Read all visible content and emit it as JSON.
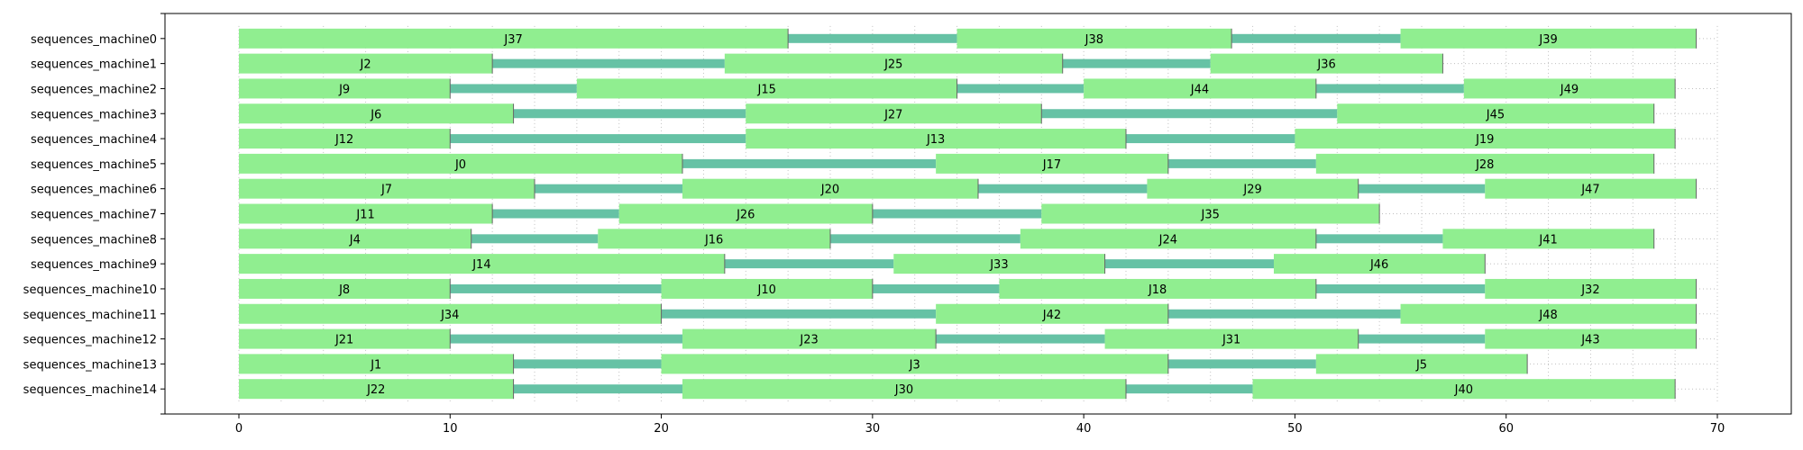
{
  "colors": {
    "job": "#90ee90",
    "idle": "#66c2a5",
    "grid": "#b0b0b0",
    "axis": "#000000",
    "job_edge": "#666666"
  },
  "chart_data": {
    "type": "gantt",
    "title": "",
    "xlabel": "",
    "ylabel": "",
    "xlim": [
      -3.5,
      73.5
    ],
    "ylim": [
      -1,
      15
    ],
    "x_ticks": [
      0,
      10,
      20,
      30,
      40,
      50,
      60,
      70
    ],
    "minor_x_step": 2,
    "grid": true,
    "rows": [
      {
        "name": "sequences_machine0",
        "jobs": [
          {
            "label": "J37",
            "start": 0,
            "end": 26
          },
          {
            "label": "J38",
            "start": 34,
            "end": 47
          },
          {
            "label": "J39",
            "start": 55,
            "end": 69
          }
        ]
      },
      {
        "name": "sequences_machine1",
        "jobs": [
          {
            "label": "J2",
            "start": 0,
            "end": 12
          },
          {
            "label": "J25",
            "start": 23,
            "end": 39
          },
          {
            "label": "J36",
            "start": 46,
            "end": 57
          }
        ]
      },
      {
        "name": "sequences_machine2",
        "jobs": [
          {
            "label": "J9",
            "start": 0,
            "end": 10
          },
          {
            "label": "J15",
            "start": 16,
            "end": 34
          },
          {
            "label": "J44",
            "start": 40,
            "end": 51
          },
          {
            "label": "J49",
            "start": 58,
            "end": 68
          }
        ]
      },
      {
        "name": "sequences_machine3",
        "jobs": [
          {
            "label": "J6",
            "start": 0,
            "end": 13
          },
          {
            "label": "J27",
            "start": 24,
            "end": 38
          },
          {
            "label": "J45",
            "start": 52,
            "end": 67
          }
        ]
      },
      {
        "name": "sequences_machine4",
        "jobs": [
          {
            "label": "J12",
            "start": 0,
            "end": 10
          },
          {
            "label": "J13",
            "start": 24,
            "end": 42
          },
          {
            "label": "J19",
            "start": 50,
            "end": 68
          }
        ]
      },
      {
        "name": "sequences_machine5",
        "jobs": [
          {
            "label": "J0",
            "start": 0,
            "end": 21
          },
          {
            "label": "J17",
            "start": 33,
            "end": 44
          },
          {
            "label": "J28",
            "start": 51,
            "end": 67
          }
        ]
      },
      {
        "name": "sequences_machine6",
        "jobs": [
          {
            "label": "J7",
            "start": 0,
            "end": 14
          },
          {
            "label": "J20",
            "start": 21,
            "end": 35
          },
          {
            "label": "J29",
            "start": 43,
            "end": 53
          },
          {
            "label": "J47",
            "start": 59,
            "end": 69
          }
        ]
      },
      {
        "name": "sequences_machine7",
        "jobs": [
          {
            "label": "J11",
            "start": 0,
            "end": 12
          },
          {
            "label": "J26",
            "start": 18,
            "end": 30
          },
          {
            "label": "J35",
            "start": 38,
            "end": 54
          }
        ]
      },
      {
        "name": "sequences_machine8",
        "jobs": [
          {
            "label": "J4",
            "start": 0,
            "end": 11
          },
          {
            "label": "J16",
            "start": 17,
            "end": 28
          },
          {
            "label": "J24",
            "start": 37,
            "end": 51
          },
          {
            "label": "J41",
            "start": 57,
            "end": 67
          }
        ]
      },
      {
        "name": "sequences_machine9",
        "jobs": [
          {
            "label": "J14",
            "start": 0,
            "end": 23
          },
          {
            "label": "J33",
            "start": 31,
            "end": 41
          },
          {
            "label": "J46",
            "start": 49,
            "end": 59
          }
        ]
      },
      {
        "name": "sequences_machine10",
        "jobs": [
          {
            "label": "J8",
            "start": 0,
            "end": 10
          },
          {
            "label": "J10",
            "start": 20,
            "end": 30
          },
          {
            "label": "J18",
            "start": 36,
            "end": 51
          },
          {
            "label": "J32",
            "start": 59,
            "end": 69
          }
        ]
      },
      {
        "name": "sequences_machine11",
        "jobs": [
          {
            "label": "J34",
            "start": 0,
            "end": 20
          },
          {
            "label": "J42",
            "start": 33,
            "end": 44
          },
          {
            "label": "J48",
            "start": 55,
            "end": 69
          }
        ]
      },
      {
        "name": "sequences_machine12",
        "jobs": [
          {
            "label": "J21",
            "start": 0,
            "end": 10
          },
          {
            "label": "J23",
            "start": 21,
            "end": 33
          },
          {
            "label": "J31",
            "start": 41,
            "end": 53
          },
          {
            "label": "J43",
            "start": 59,
            "end": 69
          }
        ]
      },
      {
        "name": "sequences_machine13",
        "jobs": [
          {
            "label": "J1",
            "start": 0,
            "end": 13
          },
          {
            "label": "J3",
            "start": 20,
            "end": 44
          },
          {
            "label": "J5",
            "start": 51,
            "end": 61
          }
        ]
      },
      {
        "name": "sequences_machine14",
        "jobs": [
          {
            "label": "J22",
            "start": 0,
            "end": 13
          },
          {
            "label": "J30",
            "start": 21,
            "end": 42
          },
          {
            "label": "J40",
            "start": 48,
            "end": 68
          }
        ]
      }
    ]
  }
}
